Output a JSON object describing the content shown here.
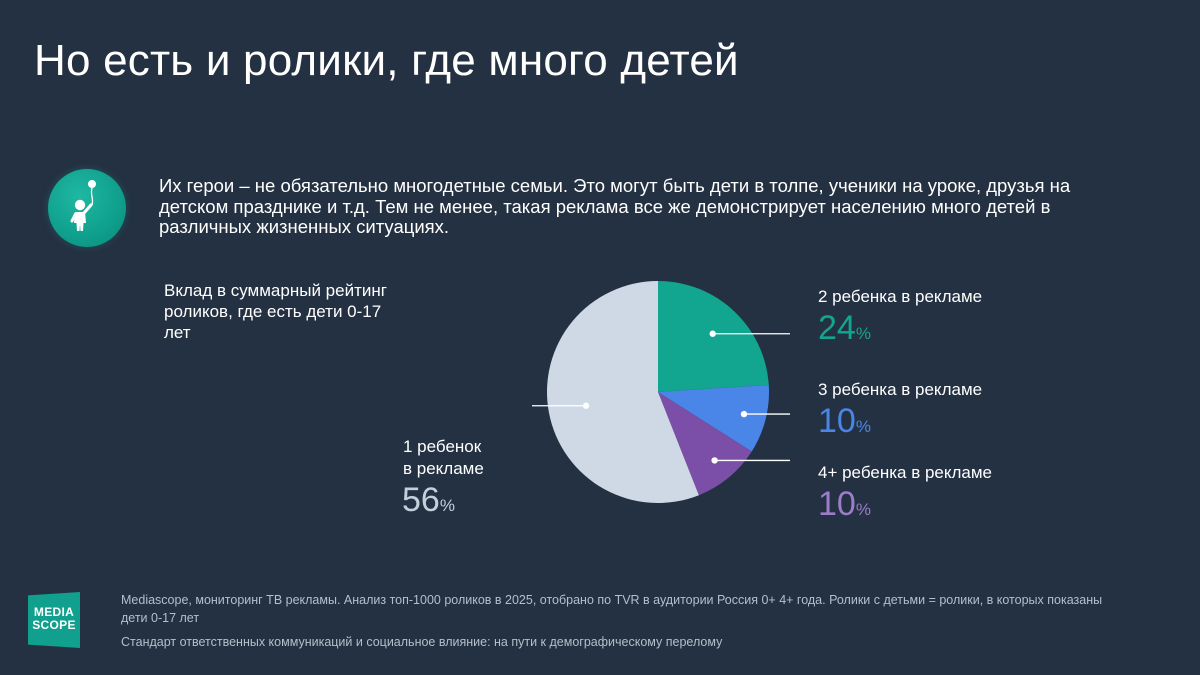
{
  "title": "Но есть и ролики, где много детей",
  "intro": "Их герои – не обязательно многодетные семьи. Это могут быть дети в толпе, ученики на уроке, друзья на детском празднике и т.д. Тем не менее, такая реклама все же демонстрирует населению много детей в различных жизненных ситуациях.",
  "icon": "child-with-balloon-icon",
  "chart_data": {
    "type": "pie",
    "title": "Вклад в суммарный рейтинг роликов, где есть дети 0-17 лет",
    "unit": "%",
    "start_angle_deg": 0,
    "direction": "clockwise",
    "slices": [
      {
        "label": "2 ребенка в рекламе",
        "value": 24,
        "color": "#12a58f",
        "value_color": "#12a58f"
      },
      {
        "label": "3 ребенка в рекламе",
        "value": 10,
        "color": "#4a86e8",
        "value_color": "#4a86e8"
      },
      {
        "label": "4+ ребенка в рекламе",
        "value": 10,
        "color": "#7b4fa8",
        "value_color": "#9d7cc9"
      },
      {
        "label_lines": [
          "1 ребенок",
          "в рекламе"
        ],
        "value": 56,
        "color": "#cfd9e6",
        "value_color": "#c4cfdc"
      }
    ]
  },
  "footer": {
    "source": "Mediascope, мониторинг ТВ рекламы. Анализ топ-1000 роликов в 2025, отобрано по TVR в аудитории Россия 0+ 4+ года. Ролики с детьми = ролики, в которых показаны дети 0-17 лет",
    "document": "Стандарт ответственных коммуникаций и социальное влияние: на пути к демографическому перелому"
  },
  "logo": {
    "line1": "MEDIA",
    "line2": "SCOPE",
    "icon": "mediascope-logo-icon",
    "color": "#10a08d"
  }
}
